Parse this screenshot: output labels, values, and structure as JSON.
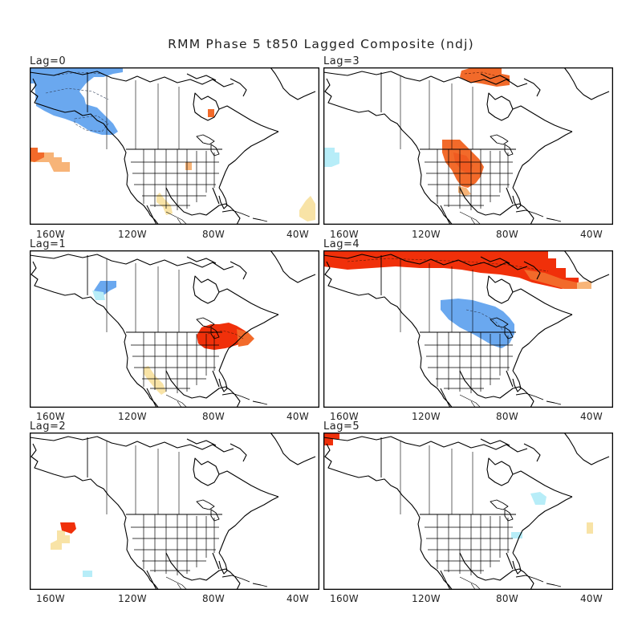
{
  "title": "RMM Phase 5 t850 Lagged Composite (ndj)",
  "lon_ticks": [
    "160W",
    "120W",
    "80W",
    "40W"
  ],
  "colors": {
    "warm_dark": "#f0300a",
    "warm_mid": "#f26a2a",
    "warm_light": "#f7b478",
    "warm_pale": "#f8e3a6",
    "cool_mid": "#6aa8ef",
    "cool_pale": "#b7edf8",
    "coast": "#000000"
  },
  "panels": [
    {
      "label": "Lag=0",
      "anomalies": [
        {
          "sign": "cool",
          "level": "mid",
          "region": "gulf-of-alaska"
        },
        {
          "sign": "warm",
          "level": "mid",
          "region": "central-north-pacific"
        },
        {
          "sign": "warm",
          "level": "light",
          "region": "central-north-pacific"
        },
        {
          "sign": "warm",
          "level": "pale",
          "region": "baja-mexico-coast"
        },
        {
          "sign": "warm",
          "level": "pale",
          "region": "tropical-atlantic"
        },
        {
          "sign": "warm",
          "level": "mid",
          "region": "hudson-bay"
        }
      ]
    },
    {
      "label": "Lag=3",
      "anomalies": [
        {
          "sign": "warm",
          "level": "mid",
          "region": "northern-canada"
        },
        {
          "sign": "warm",
          "level": "mid",
          "region": "southern-plains"
        },
        {
          "sign": "cool",
          "level": "pale",
          "region": "northeast-pacific"
        }
      ]
    },
    {
      "label": "Lag=1",
      "anomalies": [
        {
          "sign": "cool",
          "level": "mid",
          "region": "british-columbia"
        },
        {
          "sign": "warm",
          "level": "dark",
          "region": "ohio-valley"
        },
        {
          "sign": "warm",
          "level": "pale",
          "region": "baja-mexico-coast"
        }
      ]
    },
    {
      "label": "Lag=4",
      "anomalies": [
        {
          "sign": "warm",
          "level": "dark",
          "region": "arctic-canada"
        },
        {
          "sign": "cool",
          "level": "mid",
          "region": "northern-plains-great-lakes"
        }
      ]
    },
    {
      "label": "Lag=2",
      "anomalies": [
        {
          "sign": "warm",
          "level": "dark",
          "region": "central-north-pacific"
        },
        {
          "sign": "warm",
          "level": "pale",
          "region": "central-north-pacific"
        },
        {
          "sign": "cool",
          "level": "pale",
          "region": "subtropical-pacific"
        }
      ]
    },
    {
      "label": "Lag=5",
      "anomalies": [
        {
          "sign": "warm",
          "level": "dark",
          "region": "western-alaska"
        },
        {
          "sign": "cool",
          "level": "pale",
          "region": "new-england"
        },
        {
          "sign": "cool",
          "level": "pale",
          "region": "gulf-of-mexico"
        },
        {
          "sign": "warm",
          "level": "pale",
          "region": "central-atlantic"
        }
      ]
    }
  ]
}
